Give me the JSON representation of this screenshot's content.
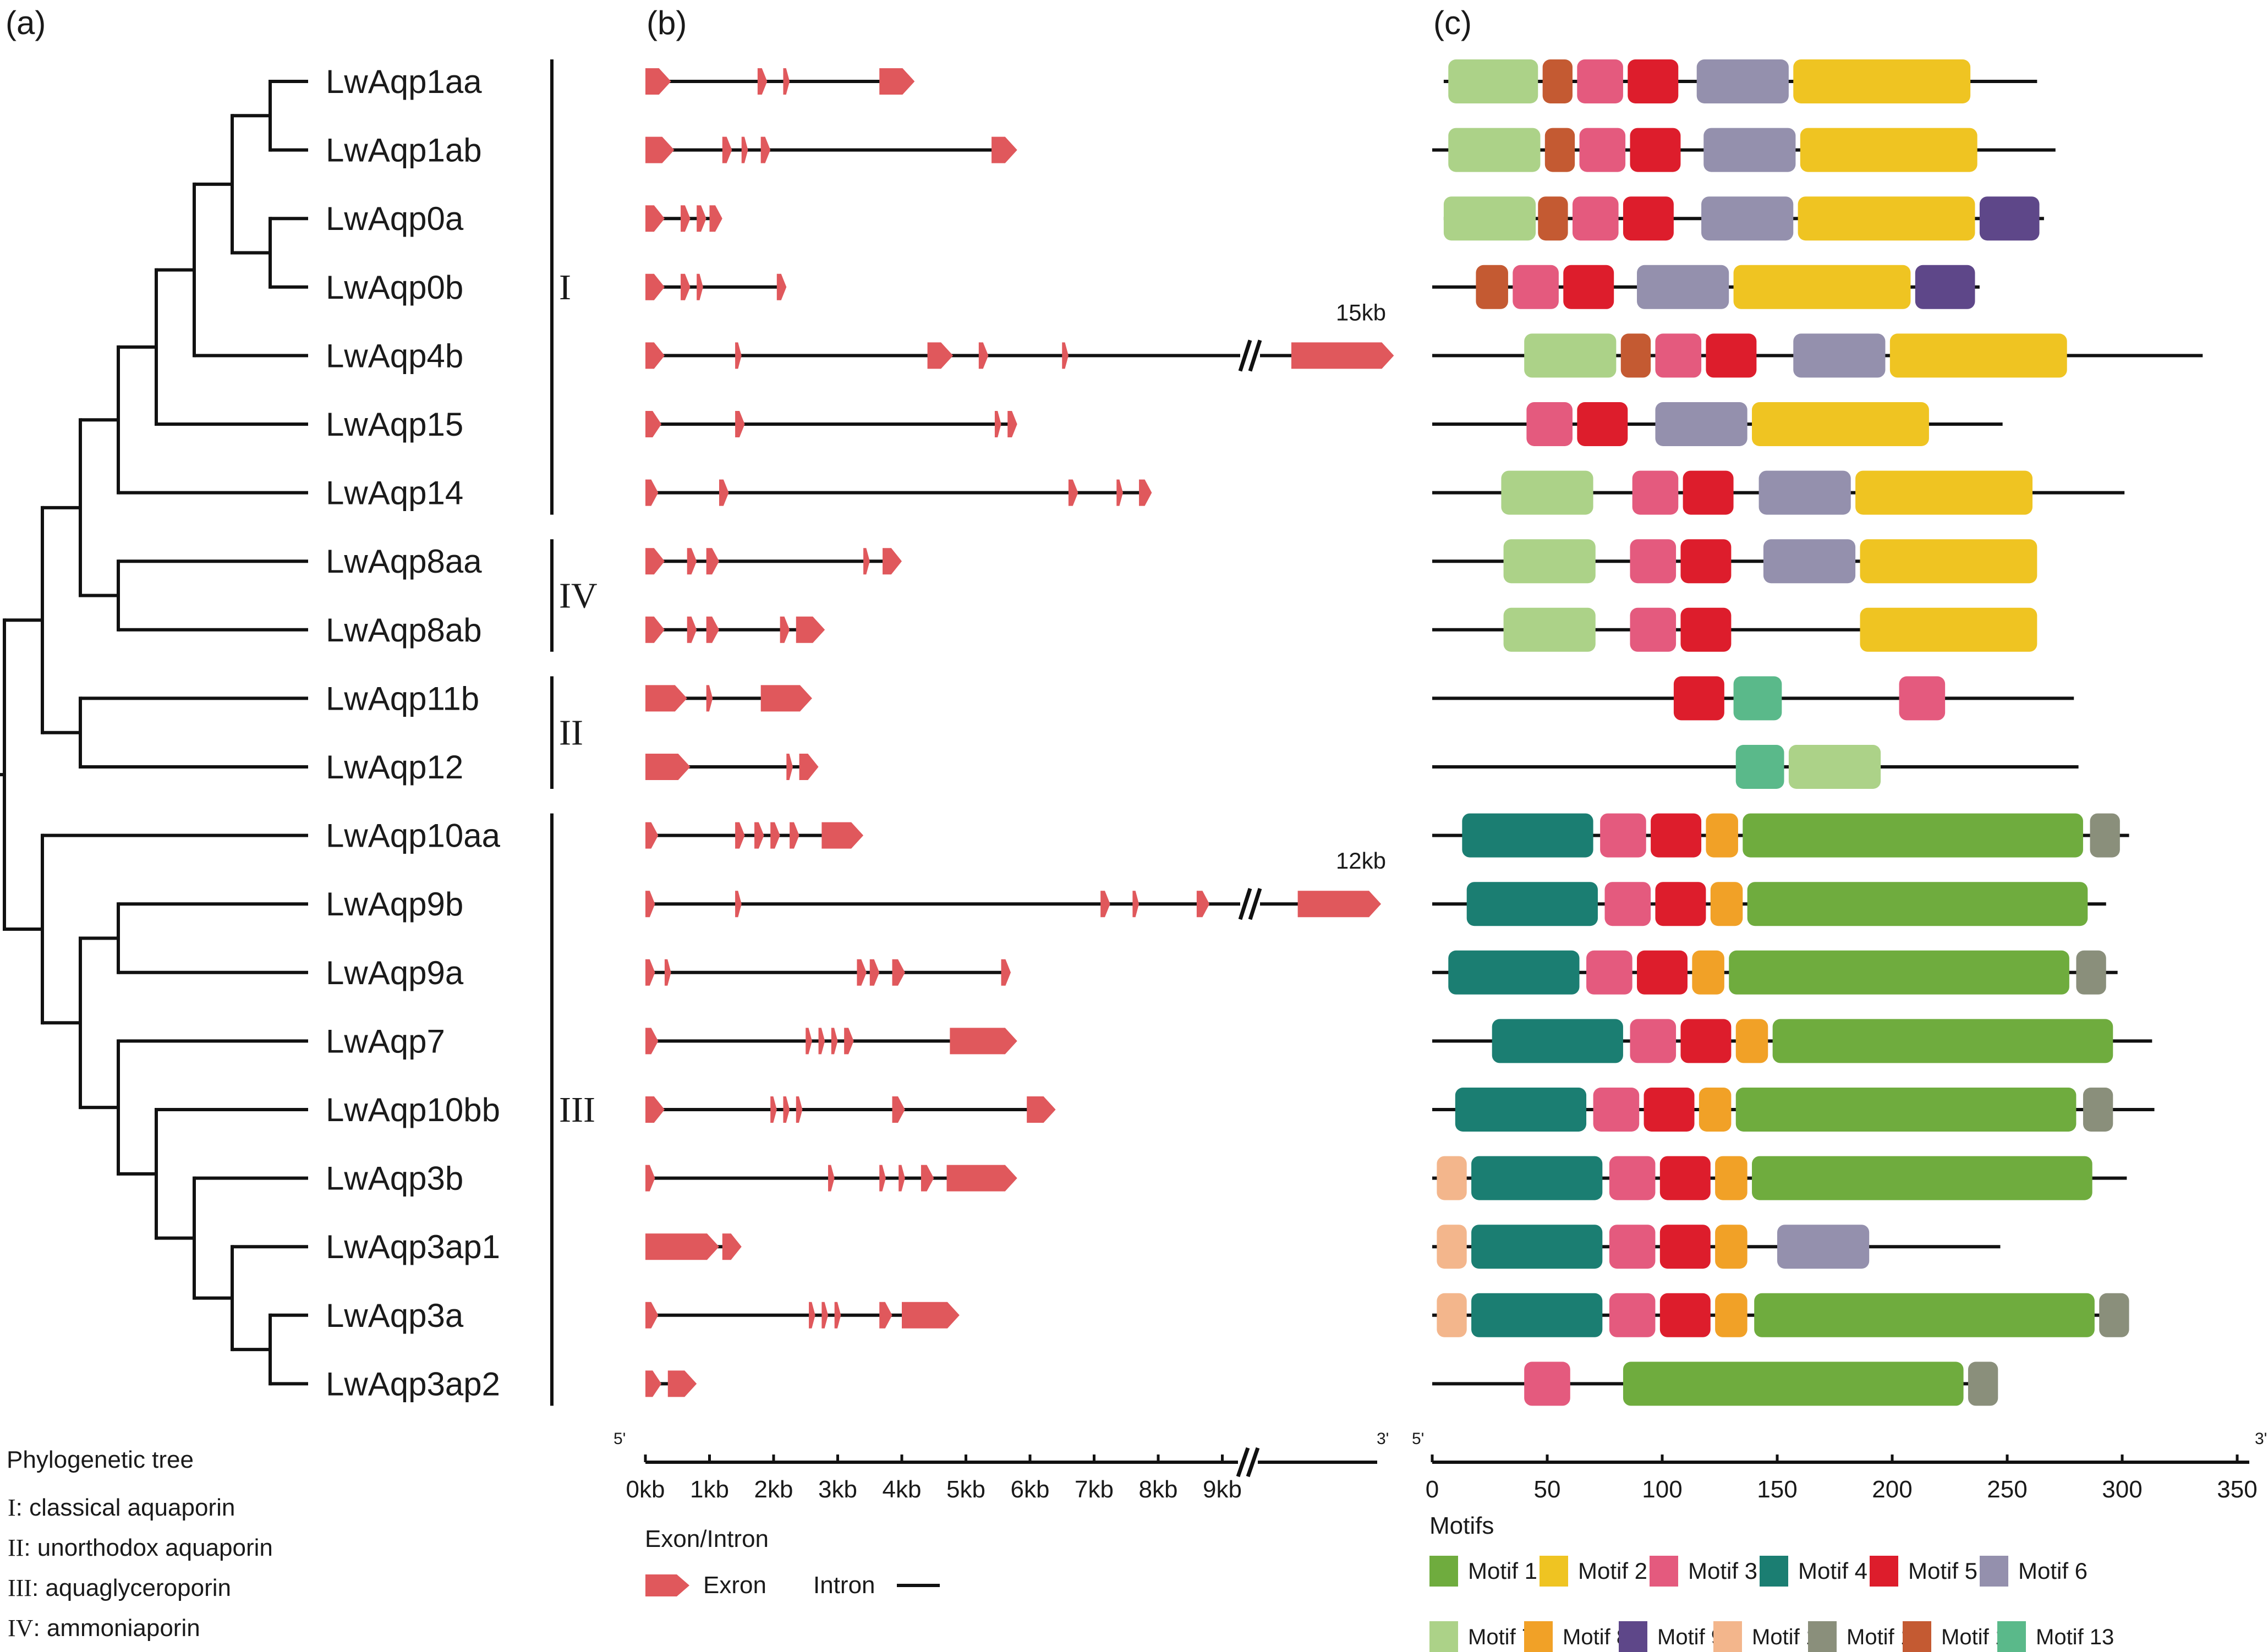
{
  "panel_labels": {
    "a": "(a)",
    "b": "(b)",
    "c": "(c)"
  },
  "genes": [
    "LwAqp1aa",
    "LwAqp1ab",
    "LwAqp0a",
    "LwAqp0b",
    "LwAqp4b",
    "LwAqp15",
    "LwAqp14",
    "LwAqp8aa",
    "LwAqp8ab",
    "LwAqp11b",
    "LwAqp12",
    "LwAqp10aa",
    "LwAqp9b",
    "LwAqp9a",
    "LwAqp7",
    "LwAqp10bb",
    "LwAqp3b",
    "LwAqp3ap1",
    "LwAqp3a",
    "LwAqp3ap2"
  ],
  "clades": [
    {
      "label": "I",
      "from": 0,
      "to": 6
    },
    {
      "label": "IV",
      "from": 7,
      "to": 8
    },
    {
      "label": "II",
      "from": 9,
      "to": 10
    },
    {
      "label": "III",
      "from": 11,
      "to": 19
    }
  ],
  "tree_legend": {
    "title": "Phylogenetic tree",
    "items": [
      {
        "numeral": "I",
        "text": ": classical aquaporin"
      },
      {
        "numeral": "II",
        "text": ": unorthodox aquaporin"
      },
      {
        "numeral": "III",
        "text": ": aquaglyceroporin"
      },
      {
        "numeral": "IV",
        "text": ": ammoniaporin"
      }
    ]
  },
  "gene_structure": {
    "axis_title": "Exon/Intron",
    "ticks": [
      "0kb",
      "1kb",
      "2kb",
      "3kb",
      "4kb",
      "5kb",
      "6kb",
      "7kb",
      "8kb",
      "9kb"
    ],
    "five_prime": "5'",
    "three_prime": "3'",
    "break_labels": [
      {
        "row": 4,
        "text": "15kb"
      },
      {
        "row": 12,
        "text": "12kb"
      }
    ],
    "legend": {
      "exon": "Exron",
      "intron": "Intron"
    },
    "rows": [
      {
        "end": 4.2,
        "exons": [
          [
            0,
            0.4
          ],
          [
            1.75,
            1.9
          ],
          [
            2.15,
            2.25
          ],
          [
            3.65,
            4.2
          ]
        ]
      },
      {
        "end": 5.8,
        "exons": [
          [
            0,
            0.45
          ],
          [
            1.2,
            1.35
          ],
          [
            1.5,
            1.6
          ],
          [
            1.8,
            1.95
          ],
          [
            5.4,
            5.8
          ]
        ]
      },
      {
        "end": 1.2,
        "exons": [
          [
            0,
            0.3
          ],
          [
            0.55,
            0.7
          ],
          [
            0.8,
            0.95
          ],
          [
            1.0,
            1.2
          ]
        ]
      },
      {
        "end": 2.2,
        "exons": [
          [
            0,
            0.3
          ],
          [
            0.55,
            0.7
          ],
          [
            0.8,
            0.9
          ],
          [
            2.05,
            2.2
          ]
        ]
      },
      {
        "end": 11.5,
        "break": true,
        "exons": [
          [
            0,
            0.3
          ],
          [
            1.4,
            1.5
          ],
          [
            4.4,
            4.8
          ],
          [
            5.2,
            5.35
          ],
          [
            6.5,
            6.6
          ],
          [
            9.9,
            11.5
          ]
        ]
      },
      {
        "end": 5.8,
        "exons": [
          [
            0,
            0.25
          ],
          [
            1.4,
            1.55
          ],
          [
            5.45,
            5.55
          ],
          [
            5.65,
            5.8
          ]
        ]
      },
      {
        "end": 7.9,
        "exons": [
          [
            0,
            0.2
          ],
          [
            1.15,
            1.3
          ],
          [
            6.6,
            6.75
          ],
          [
            7.35,
            7.45
          ],
          [
            7.7,
            7.9
          ]
        ]
      },
      {
        "end": 4.0,
        "exons": [
          [
            0,
            0.3
          ],
          [
            0.65,
            0.8
          ],
          [
            0.95,
            1.15
          ],
          [
            3.4,
            3.5
          ],
          [
            3.7,
            4.0
          ]
        ]
      },
      {
        "end": 2.8,
        "exons": [
          [
            0,
            0.3
          ],
          [
            0.65,
            0.8
          ],
          [
            0.95,
            1.15
          ],
          [
            2.1,
            2.25
          ],
          [
            2.35,
            2.8
          ]
        ]
      },
      {
        "end": 2.6,
        "exons": [
          [
            0,
            0.65
          ],
          [
            0.95,
            1.05
          ],
          [
            1.8,
            2.6
          ]
        ]
      },
      {
        "end": 2.7,
        "exons": [
          [
            0,
            0.7
          ],
          [
            2.2,
            2.3
          ],
          [
            2.4,
            2.7
          ]
        ]
      },
      {
        "end": 3.4,
        "exons": [
          [
            0,
            0.2
          ],
          [
            1.4,
            1.55
          ],
          [
            1.7,
            1.85
          ],
          [
            1.95,
            2.1
          ],
          [
            2.25,
            2.4
          ],
          [
            2.75,
            3.4
          ]
        ]
      },
      {
        "end": 11.3,
        "break": true,
        "exons": [
          [
            0,
            0.15
          ],
          [
            1.4,
            1.5
          ],
          [
            7.1,
            7.25
          ],
          [
            7.6,
            7.7
          ],
          [
            8.6,
            8.8
          ],
          [
            10.0,
            11.3
          ]
        ]
      },
      {
        "end": 5.7,
        "exons": [
          [
            0,
            0.15
          ],
          [
            0.3,
            0.4
          ],
          [
            3.3,
            3.45
          ],
          [
            3.5,
            3.65
          ],
          [
            3.85,
            4.05
          ],
          [
            5.55,
            5.7
          ]
        ]
      },
      {
        "end": 5.8,
        "exons": [
          [
            0,
            0.2
          ],
          [
            2.5,
            2.6
          ],
          [
            2.7,
            2.8
          ],
          [
            2.9,
            3.0
          ],
          [
            3.1,
            3.25
          ],
          [
            4.75,
            5.8
          ]
        ]
      },
      {
        "end": 6.4,
        "exons": [
          [
            0,
            0.3
          ],
          [
            1.95,
            2.05
          ],
          [
            2.15,
            2.25
          ],
          [
            2.35,
            2.45
          ],
          [
            3.85,
            4.05
          ],
          [
            5.95,
            6.4
          ]
        ]
      },
      {
        "end": 5.8,
        "exons": [
          [
            0,
            0.15
          ],
          [
            2.85,
            2.95
          ],
          [
            3.65,
            3.75
          ],
          [
            3.95,
            4.05
          ],
          [
            4.3,
            4.5
          ],
          [
            4.7,
            5.8
          ]
        ]
      },
      {
        "end": 1.5,
        "exons": [
          [
            0,
            1.15
          ],
          [
            1.2,
            1.5
          ]
        ]
      },
      {
        "end": 4.9,
        "exons": [
          [
            0,
            0.2
          ],
          [
            2.55,
            2.65
          ],
          [
            2.75,
            2.85
          ],
          [
            2.95,
            3.05
          ],
          [
            3.65,
            3.85
          ],
          [
            4.0,
            4.9
          ]
        ]
      },
      {
        "end": 0.8,
        "exons": [
          [
            0,
            0.25
          ],
          [
            0.35,
            0.8
          ]
        ]
      }
    ]
  },
  "motif_panel": {
    "axis_title": "Motifs",
    "ticks": [
      "0",
      "50",
      "100",
      "150",
      "200",
      "250",
      "300",
      "350"
    ],
    "five_prime": "5'",
    "three_prime": "3'",
    "colors": {
      "1": "#6fac3e",
      "2": "#efc422",
      "3": "#e45a7e",
      "4": "#1b7e72",
      "5": "#dd1d2c",
      "6": "#9490ad",
      "7": "#acd288",
      "8": "#f1a127",
      "9": "#5e4789",
      "10": "#f3b68c",
      "11": "#8a8f7b",
      "12": "#c45a32",
      "13": "#5ab98a"
    },
    "legend": [
      {
        "id": "1",
        "label": "Motif 1"
      },
      {
        "id": "2",
        "label": "Motif 2"
      },
      {
        "id": "3",
        "label": "Motif 3"
      },
      {
        "id": "4",
        "label": "Motif 4"
      },
      {
        "id": "5",
        "label": "Motif 5"
      },
      {
        "id": "6",
        "label": "Motif 6"
      },
      {
        "id": "7",
        "label": "Motif 7"
      },
      {
        "id": "8",
        "label": "Motif 8"
      },
      {
        "id": "9",
        "label": "Motif 9"
      },
      {
        "id": "10",
        "label": "Motif 10"
      },
      {
        "id": "11",
        "label": "Motif 11"
      },
      {
        "id": "12",
        "label": "Motif 12"
      },
      {
        "id": "13",
        "label": "Motif 13"
      }
    ],
    "rows": [
      {
        "start": 5,
        "end": 263,
        "motifs": [
          [
            "7",
            7,
            46
          ],
          [
            "12",
            48,
            61
          ],
          [
            "3",
            63,
            83
          ],
          [
            "5",
            85,
            107
          ],
          [
            "6",
            115,
            155
          ],
          [
            "2",
            157,
            234
          ]
        ]
      },
      {
        "start": 0,
        "end": 271,
        "motifs": [
          [
            "7",
            7,
            47
          ],
          [
            "12",
            49,
            62
          ],
          [
            "3",
            64,
            84
          ],
          [
            "5",
            86,
            108
          ],
          [
            "6",
            118,
            158
          ],
          [
            "2",
            160,
            237
          ]
        ]
      },
      {
        "start": 5,
        "end": 266,
        "motifs": [
          [
            "7",
            5,
            45
          ],
          [
            "12",
            46,
            59
          ],
          [
            "3",
            61,
            81
          ],
          [
            "5",
            83,
            105
          ],
          [
            "6",
            117,
            157
          ],
          [
            "2",
            159,
            236
          ],
          [
            "9",
            238,
            264
          ]
        ]
      },
      {
        "start": 0,
        "end": 238,
        "motifs": [
          [
            "12",
            19,
            33
          ],
          [
            "3",
            35,
            55
          ],
          [
            "5",
            57,
            79
          ],
          [
            "6",
            89,
            129
          ],
          [
            "2",
            131,
            208
          ],
          [
            "9",
            210,
            236
          ]
        ]
      },
      {
        "start": 0,
        "end": 335,
        "motifs": [
          [
            "7",
            40,
            80
          ],
          [
            "12",
            82,
            95
          ],
          [
            "3",
            97,
            117
          ],
          [
            "5",
            119,
            141
          ],
          [
            "6",
            157,
            197
          ],
          [
            "2",
            199,
            276
          ]
        ]
      },
      {
        "start": 0,
        "end": 248,
        "motifs": [
          [
            "3",
            41,
            61
          ],
          [
            "5",
            63,
            85
          ],
          [
            "6",
            97,
            137
          ],
          [
            "2",
            139,
            216
          ]
        ]
      },
      {
        "start": 0,
        "end": 301,
        "motifs": [
          [
            "7",
            30,
            70
          ],
          [
            "3",
            87,
            107
          ],
          [
            "5",
            109,
            131
          ],
          [
            "6",
            142,
            182
          ],
          [
            "2",
            184,
            261
          ]
        ]
      },
      {
        "start": 0,
        "end": 262,
        "motifs": [
          [
            "7",
            31,
            71
          ],
          [
            "3",
            86,
            106
          ],
          [
            "5",
            108,
            130
          ],
          [
            "6",
            144,
            184
          ],
          [
            "2",
            186,
            263
          ]
        ]
      },
      {
        "start": 0,
        "end": 262,
        "motifs": [
          [
            "7",
            31,
            71
          ],
          [
            "3",
            86,
            106
          ],
          [
            "5",
            108,
            130
          ],
          [
            "2",
            186,
            263
          ]
        ]
      },
      {
        "start": 0,
        "end": 279,
        "motifs": [
          [
            "5",
            105,
            127
          ],
          [
            "13",
            131,
            152
          ],
          [
            "3",
            203,
            223
          ]
        ]
      },
      {
        "start": 0,
        "end": 281,
        "motifs": [
          [
            "13",
            132,
            153
          ],
          [
            "7",
            155,
            195
          ]
        ]
      },
      {
        "start": 0,
        "end": 303,
        "motifs": [
          [
            "4",
            13,
            70
          ],
          [
            "3",
            73,
            93
          ],
          [
            "5",
            95,
            117
          ],
          [
            "8",
            119,
            133
          ],
          [
            "1",
            135,
            283
          ],
          [
            "11",
            286,
            299
          ]
        ]
      },
      {
        "start": 0,
        "end": 293,
        "motifs": [
          [
            "4",
            15,
            72
          ],
          [
            "3",
            75,
            95
          ],
          [
            "5",
            97,
            119
          ],
          [
            "8",
            121,
            135
          ],
          [
            "1",
            137,
            285
          ]
        ]
      },
      {
        "start": 0,
        "end": 298,
        "motifs": [
          [
            "4",
            7,
            64
          ],
          [
            "3",
            67,
            87
          ],
          [
            "5",
            89,
            111
          ],
          [
            "8",
            113,
            127
          ],
          [
            "1",
            129,
            277
          ],
          [
            "11",
            280,
            293
          ]
        ]
      },
      {
        "start": 0,
        "end": 313,
        "motifs": [
          [
            "4",
            26,
            83
          ],
          [
            "3",
            86,
            106
          ],
          [
            "5",
            108,
            130
          ],
          [
            "8",
            132,
            146
          ],
          [
            "1",
            148,
            296
          ]
        ]
      },
      {
        "start": 0,
        "end": 314,
        "motifs": [
          [
            "4",
            10,
            67
          ],
          [
            "3",
            70,
            90
          ],
          [
            "5",
            92,
            114
          ],
          [
            "8",
            116,
            130
          ],
          [
            "1",
            132,
            280
          ],
          [
            "11",
            283,
            296
          ]
        ]
      },
      {
        "start": 0,
        "end": 302,
        "motifs": [
          [
            "10",
            2,
            15
          ],
          [
            "4",
            17,
            74
          ],
          [
            "3",
            77,
            97
          ],
          [
            "5",
            99,
            121
          ],
          [
            "8",
            123,
            137
          ],
          [
            "1",
            139,
            287
          ]
        ]
      },
      {
        "start": 0,
        "end": 247,
        "motifs": [
          [
            "10",
            2,
            15
          ],
          [
            "4",
            17,
            74
          ],
          [
            "3",
            77,
            97
          ],
          [
            "5",
            99,
            121
          ],
          [
            "8",
            123,
            137
          ],
          [
            "6",
            150,
            190
          ]
        ]
      },
      {
        "start": 0,
        "end": 298,
        "motifs": [
          [
            "10",
            2,
            15
          ],
          [
            "4",
            17,
            74
          ],
          [
            "3",
            77,
            97
          ],
          [
            "5",
            99,
            121
          ],
          [
            "8",
            123,
            137
          ],
          [
            "1",
            140,
            288
          ],
          [
            "11",
            290,
            303
          ]
        ]
      },
      {
        "start": 0,
        "end": 245,
        "motifs": [
          [
            "3",
            40,
            60
          ],
          [
            "1",
            83,
            231
          ],
          [
            "11",
            233,
            246
          ]
        ]
      }
    ]
  }
}
